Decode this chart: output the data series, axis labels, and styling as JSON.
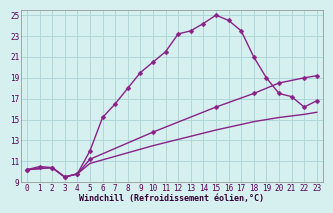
{
  "background_color": "#d6f0f0",
  "grid_color": "#b0d8d8",
  "line_color": "#882288",
  "marker": "D",
  "marker_size": 2.5,
  "line_width": 1.0,
  "xlim": [
    -0.5,
    23.5
  ],
  "ylim": [
    9,
    25.5
  ],
  "yticks": [
    9,
    11,
    13,
    15,
    17,
    19,
    21,
    23,
    25
  ],
  "xticks": [
    0,
    1,
    2,
    3,
    4,
    5,
    6,
    7,
    8,
    9,
    10,
    11,
    12,
    13,
    14,
    15,
    16,
    17,
    18,
    19,
    20,
    21,
    22,
    23
  ],
  "xlabel": "Windchill (Refroidissement éolien,°C)",
  "xlabel_fontsize": 6.0,
  "tick_fontsize": 5.5,
  "line1_x": [
    0,
    1,
    2,
    3,
    4,
    5,
    6,
    7,
    8,
    9,
    10,
    11,
    12,
    13,
    14,
    15,
    16,
    17,
    18,
    19,
    20,
    21,
    22,
    23
  ],
  "line1_y": [
    10.2,
    10.5,
    10.4,
    9.5,
    9.8,
    12.0,
    15.2,
    16.5,
    18.0,
    19.5,
    20.5,
    21.5,
    23.2,
    23.5,
    24.2,
    25.0,
    24.5,
    23.5,
    21.0,
    19.0,
    17.5,
    17.2,
    16.2,
    16.8
  ],
  "line2_x": [
    0,
    2,
    3,
    4,
    5,
    10,
    15,
    18,
    20,
    22,
    23
  ],
  "line2_y": [
    10.2,
    10.4,
    9.5,
    9.8,
    11.2,
    13.8,
    16.2,
    17.5,
    18.5,
    19.0,
    19.2
  ],
  "line3_x": [
    0,
    2,
    3,
    4,
    5,
    10,
    15,
    18,
    20,
    22,
    23
  ],
  "line3_y": [
    10.2,
    10.4,
    9.5,
    9.8,
    10.8,
    12.5,
    14.0,
    14.8,
    15.2,
    15.5,
    15.7
  ]
}
